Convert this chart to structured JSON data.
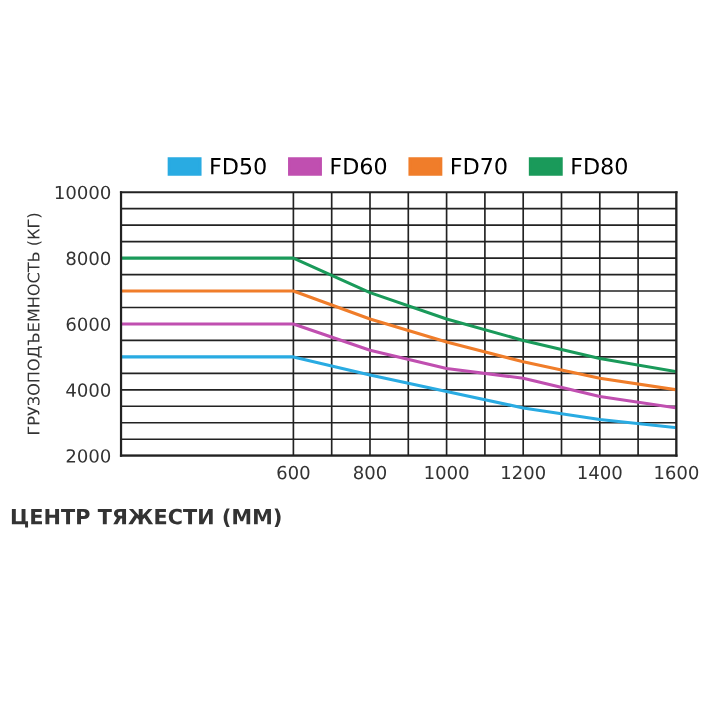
{
  "chart_data": {
    "type": "line",
    "xlabel": "ЦЕНТР ТЯЖЕСТИ (ММ)",
    "ylabel": "ГРУЗОПОДЪЕМНОСТЬ (КГ)",
    "x": [
      150,
      600,
      800,
      1000,
      1200,
      1400,
      1600
    ],
    "series": [
      {
        "name": "FD50",
        "color": "#29abe2",
        "values": [
          5000,
          5000,
          4450,
          3950,
          3450,
          3100,
          2850
        ]
      },
      {
        "name": "FD60",
        "color": "#c04fb0",
        "values": [
          6000,
          6000,
          5200,
          4650,
          4350,
          3800,
          3450
        ]
      },
      {
        "name": "FD70",
        "color": "#f07d2a",
        "values": [
          7000,
          7000,
          6150,
          5450,
          4850,
          4350,
          4000
        ]
      },
      {
        "name": "FD80",
        "color": "#1a9a5a",
        "values": [
          8000,
          8000,
          6950,
          6150,
          5500,
          4950,
          4550
        ]
      }
    ],
    "xlim": [
      150,
      1600
    ],
    "ylim": [
      2000,
      10000
    ],
    "xticks": [
      600,
      {
        "value": 700,
        "label": null
      },
      800,
      {
        "value": 900,
        "label": null
      },
      1000,
      {
        "value": 1100,
        "label": null
      },
      1200,
      {
        "value": 1300,
        "label": null
      },
      1400,
      {
        "value": 1500,
        "label": null
      },
      1600
    ],
    "yticks": [
      2000,
      {
        "value": 2500,
        "label": null
      },
      {
        "value": 3000,
        "label": null
      },
      {
        "value": 3500,
        "label": null
      },
      4000,
      {
        "value": 4500,
        "label": null
      },
      {
        "value": 5000,
        "label": null
      },
      {
        "value": 5500,
        "label": null
      },
      6000,
      {
        "value": 6500,
        "label": null
      },
      {
        "value": 7000,
        "label": null
      },
      {
        "value": 7500,
        "label": null
      },
      8000,
      {
        "value": 8500,
        "label": null
      },
      {
        "value": 9000,
        "label": null
      },
      {
        "value": 9500,
        "label": null
      },
      10000
    ],
    "grid": true,
    "legend": "top",
    "marker": "none",
    "line_style": "solid"
  }
}
